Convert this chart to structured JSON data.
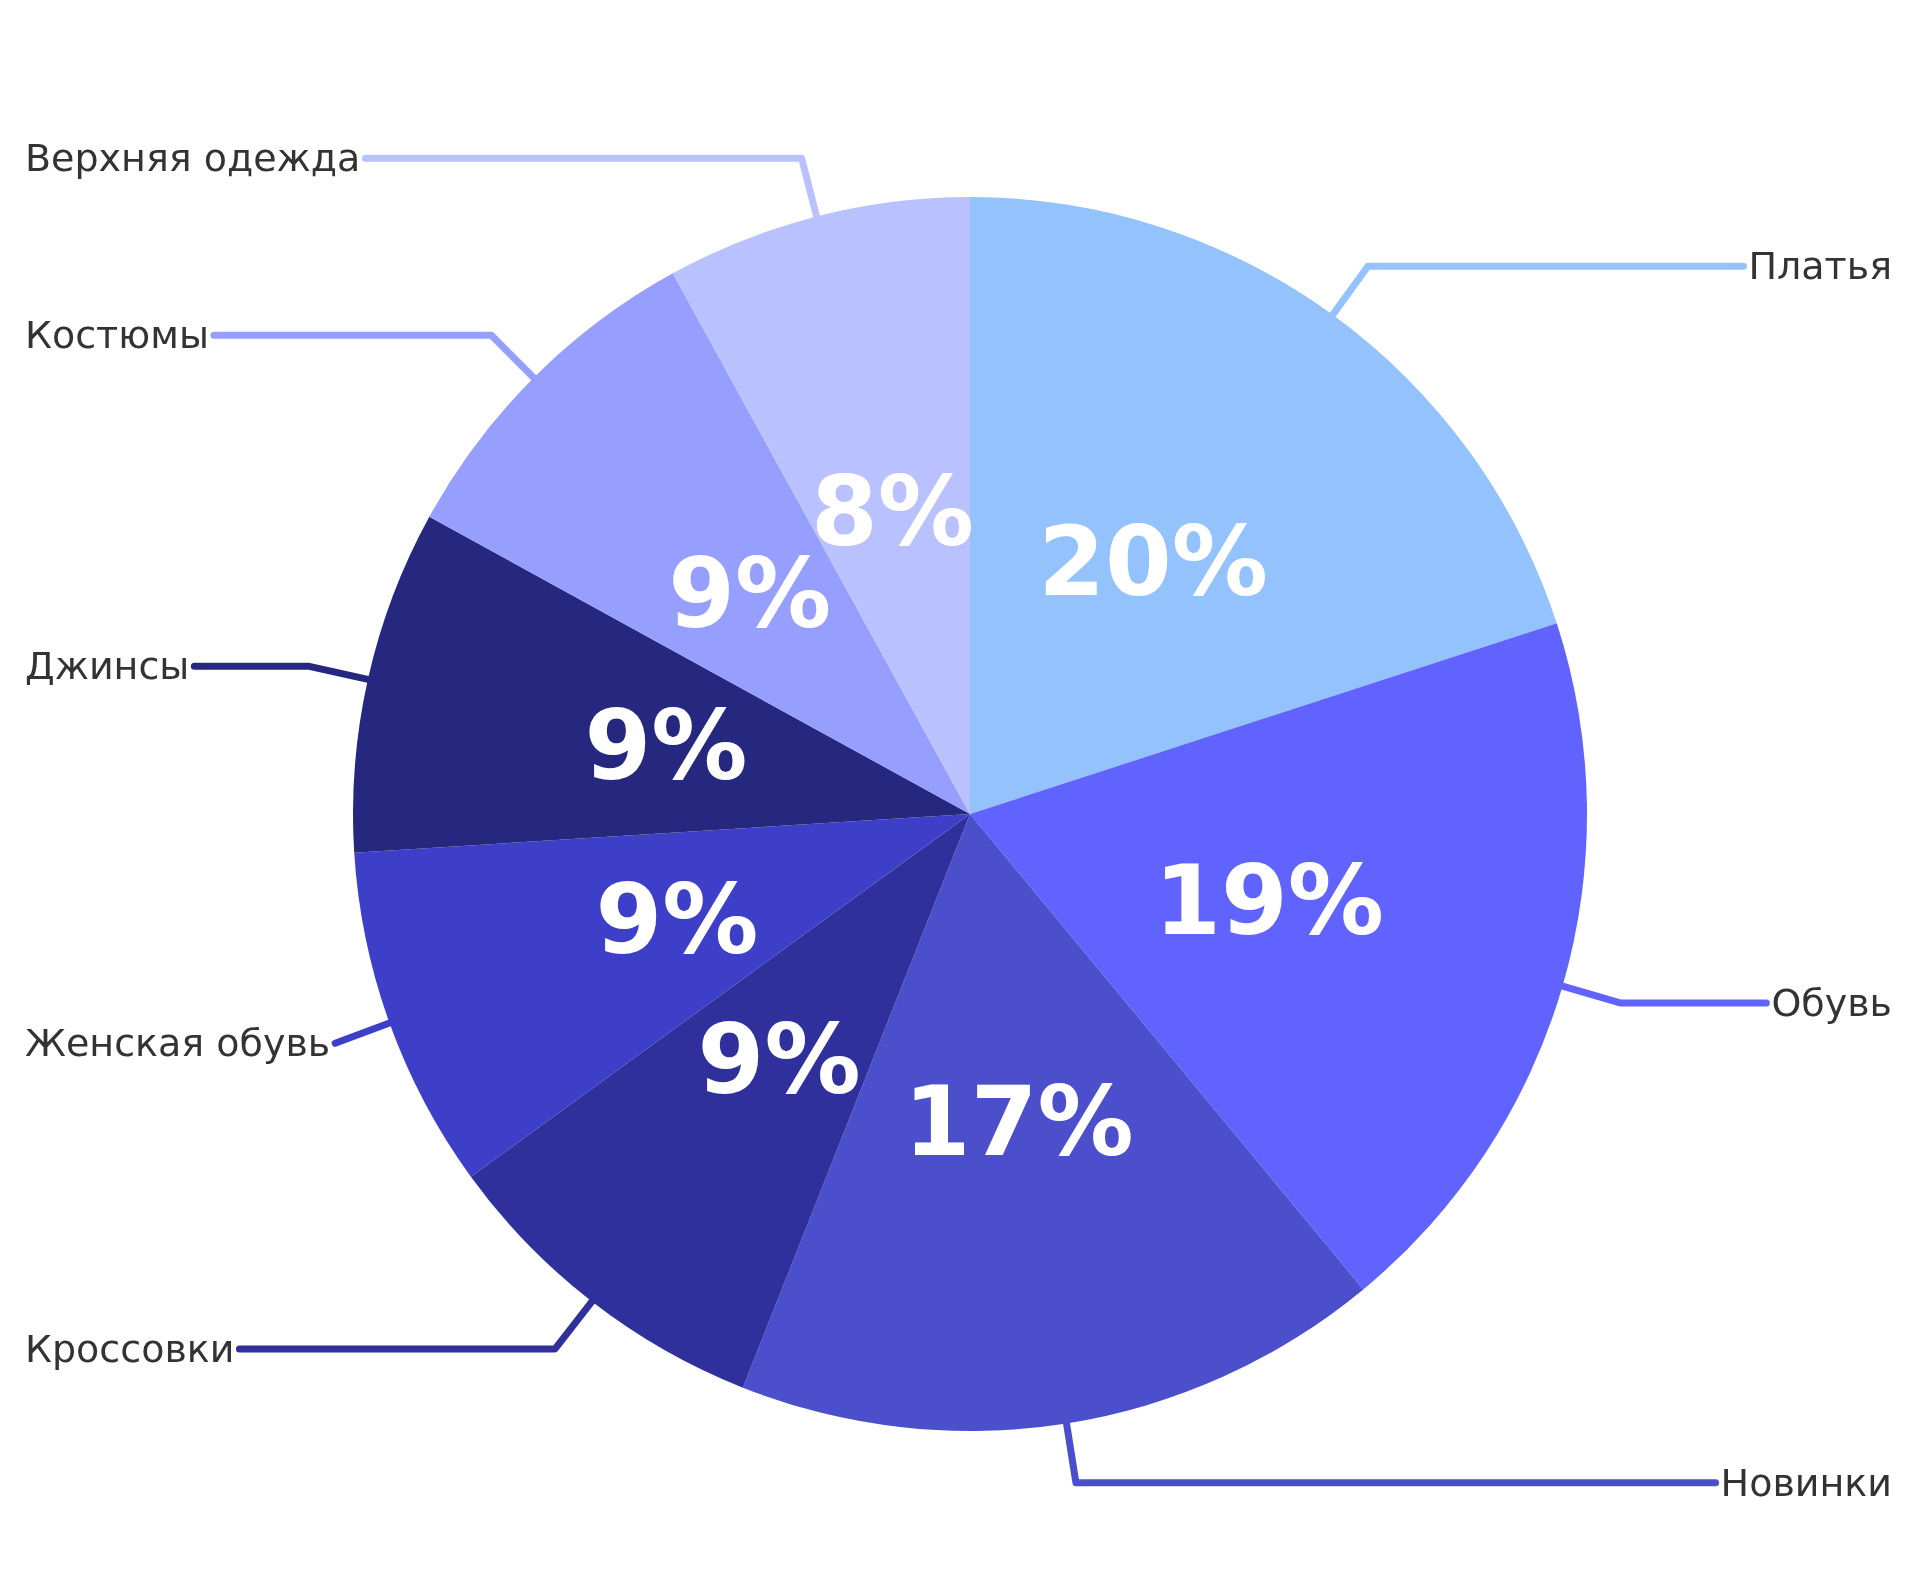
{
  "chart_data": {
    "type": "pie",
    "categories": [
      "Платья",
      "Обувь",
      "Новинки",
      "Кроссовки",
      "Женская обувь",
      "Джинсы",
      "Костюмы",
      "Верхняя одежда"
    ],
    "values": [
      20,
      19,
      17,
      9,
      9,
      9,
      9,
      8
    ],
    "colors": [
      "#94c2fd",
      "#6163fe",
      "#4b4fcc",
      "#30309c",
      "#3e3fc9",
      "#26277f",
      "#979ffe",
      "#b9c2fe"
    ],
    "value_labels": [
      "20%",
      "19%",
      "17%",
      "9%",
      "9%",
      "9%",
      "9%",
      "8%"
    ],
    "legend": false
  }
}
